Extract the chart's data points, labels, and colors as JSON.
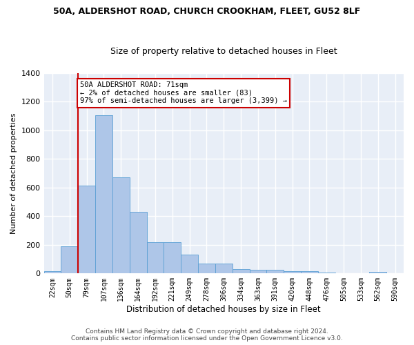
{
  "title_line1": "50A, ALDERSHOT ROAD, CHURCH CROOKHAM, FLEET, GU52 8LF",
  "title_line2": "Size of property relative to detached houses in Fleet",
  "xlabel": "Distribution of detached houses by size in Fleet",
  "ylabel": "Number of detached properties",
  "footer_line1": "Contains HM Land Registry data © Crown copyright and database right 2024.",
  "footer_line2": "Contains public sector information licensed under the Open Government Licence v3.0.",
  "categories": [
    "22sqm",
    "50sqm",
    "79sqm",
    "107sqm",
    "136sqm",
    "164sqm",
    "192sqm",
    "221sqm",
    "249sqm",
    "278sqm",
    "306sqm",
    "334sqm",
    "363sqm",
    "391sqm",
    "420sqm",
    "448sqm",
    "476sqm",
    "505sqm",
    "533sqm",
    "562sqm",
    "590sqm"
  ],
  "values": [
    18,
    190,
    615,
    1105,
    670,
    430,
    220,
    220,
    130,
    70,
    70,
    32,
    28,
    25,
    18,
    14,
    8,
    0,
    0,
    12,
    0
  ],
  "bar_color": "#aec6e8",
  "bar_edge_color": "#5a9fd4",
  "vline_x": 1.5,
  "vline_color": "#cc0000",
  "annotation_text": "50A ALDERSHOT ROAD: 71sqm\n← 2% of detached houses are smaller (83)\n97% of semi-detached houses are larger (3,399) →",
  "annotation_box_color": "#ffffff",
  "annotation_box_edge": "#cc0000",
  "ylim_max": 1400,
  "yticks": [
    0,
    200,
    400,
    600,
    800,
    1000,
    1200,
    1400
  ],
  "background_color": "#e8eef7",
  "grid_color": "#ffffff",
  "title1_fontsize": 9,
  "title2_fontsize": 9,
  "ylabel_fontsize": 8,
  "xlabel_fontsize": 8.5,
  "tick_fontsize": 7,
  "footer_fontsize": 6.5
}
